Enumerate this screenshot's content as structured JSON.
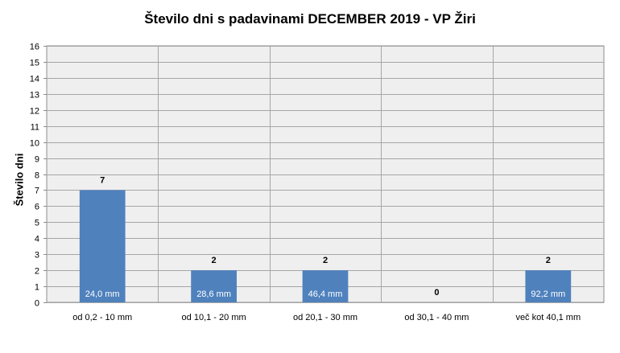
{
  "chart_data": {
    "type": "bar",
    "title": "Število dni s padavinami  DECEMBER 2019 - VP Žiri",
    "ylabel": "Število dni",
    "xlabel": "",
    "ylim": [
      0,
      16
    ],
    "yticks": [
      0,
      1,
      2,
      3,
      4,
      5,
      6,
      7,
      8,
      9,
      10,
      11,
      12,
      13,
      14,
      15,
      16
    ],
    "categories": [
      "od 0,2 - 10 mm",
      "od 10,1 - 20 mm",
      "od 20,1 - 30 mm",
      "od 30,1 - 40 mm",
      "več kot 40,1 mm"
    ],
    "values": [
      7,
      2,
      2,
      0,
      2
    ],
    "bar_amounts": [
      "24,0 mm",
      "28,6 mm",
      "46,4 mm",
      "",
      "92,2 mm"
    ],
    "grid": true,
    "legend": "none",
    "colors": {
      "bar": "#4f81bd",
      "plot_bg": "#efefef",
      "grid": "#a6a6a6"
    }
  }
}
